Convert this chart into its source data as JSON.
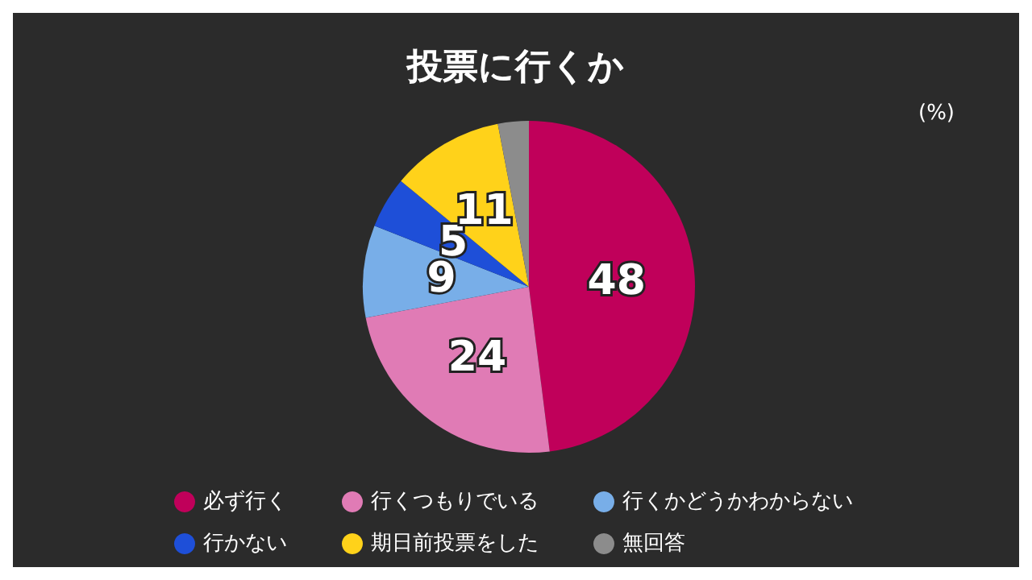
{
  "chart_data": {
    "type": "pie",
    "title": "投票に行くか",
    "categories": [
      "必ず行く",
      "行くつもりでいる",
      "行くかどうかわからない",
      "行かない",
      "期日前投票をした",
      "無回答"
    ],
    "values": [
      48,
      24,
      9,
      5,
      11,
      3
    ],
    "value_labels": [
      "48",
      "24",
      "9",
      "5",
      "11",
      null
    ],
    "colors": [
      "#c0005a",
      "#e07bb5",
      "#78aee8",
      "#1e4fd8",
      "#ffd21a",
      "#8c8c8c"
    ],
    "annotations": [
      "(%)"
    ],
    "legend": "bottom"
  }
}
